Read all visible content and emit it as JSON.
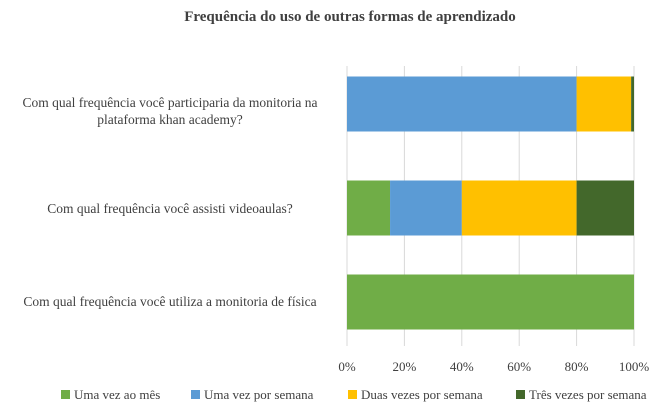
{
  "chart_data": {
    "type": "bar",
    "orientation": "horizontal",
    "stacked": "percent",
    "title": "Frequência do uso de outras formas de aprendizado",
    "categories": [
      "Com qual frequência você participaria da monitoria na plataforma khan academy?",
      "Com qual frequência você assisti videoaulas?",
      "Com qual frequência você utiliza a monitoria de física"
    ],
    "series": [
      {
        "name": "Uma vez ao mês",
        "color": "#70AD47",
        "values": [
          0,
          15,
          100
        ]
      },
      {
        "name": "Uma vez por semana",
        "color": "#5B9BD5",
        "values": [
          80,
          25,
          0
        ]
      },
      {
        "name": "Duas vezes por semana",
        "color": "#FFC000",
        "values": [
          19,
          40,
          0
        ]
      },
      {
        "name": "Três vezes por semana",
        "color": "#43682B",
        "values": [
          1,
          20,
          0
        ]
      }
    ],
    "xlim": [
      0,
      100
    ],
    "xticks": [
      "0%",
      "20%",
      "40%",
      "60%",
      "80%",
      "100%"
    ],
    "grid": true,
    "legend_position": "bottom"
  }
}
